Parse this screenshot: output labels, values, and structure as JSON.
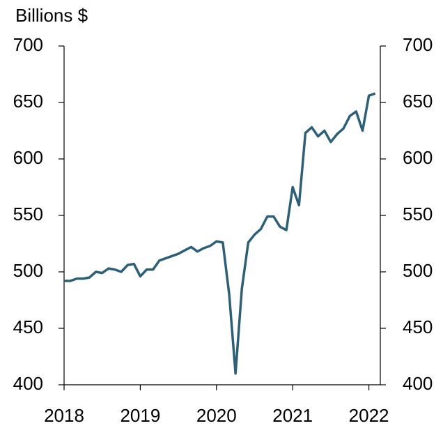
{
  "chart_data": {
    "type": "line",
    "y_label": "Billions $",
    "x": [
      2018.0,
      2018.083,
      2018.167,
      2018.25,
      2018.333,
      2018.417,
      2018.5,
      2018.583,
      2018.667,
      2018.75,
      2018.833,
      2018.917,
      2019.0,
      2019.083,
      2019.167,
      2019.25,
      2019.333,
      2019.417,
      2019.5,
      2019.583,
      2019.667,
      2019.75,
      2019.833,
      2019.917,
      2020.0,
      2020.083,
      2020.167,
      2020.25,
      2020.333,
      2020.417,
      2020.5,
      2020.583,
      2020.667,
      2020.75,
      2020.833,
      2020.917,
      2021.0,
      2021.083,
      2021.167,
      2021.25,
      2021.333,
      2021.417,
      2021.5,
      2021.583,
      2021.667,
      2021.75,
      2021.833,
      2021.917,
      2022.0,
      2022.083
    ],
    "series": [
      {
        "color": "#2c6079",
        "values": [
          492,
          492,
          494,
          494,
          495,
          500,
          499,
          503,
          502,
          500,
          506,
          507,
          496,
          502,
          502,
          510,
          512,
          514,
          516,
          519,
          522,
          518,
          521,
          523,
          527,
          526,
          480,
          410,
          485,
          526,
          533,
          538,
          549,
          549,
          540,
          537,
          575,
          559,
          623,
          628,
          620,
          625,
          615,
          622,
          627,
          638,
          642,
          625,
          656,
          658
        ]
      }
    ],
    "xlim": [
      2018,
      2022.15
    ],
    "xticks": [
      2018,
      2019,
      2020,
      2021,
      2022
    ],
    "ylim": [
      400,
      700
    ],
    "yticks": [
      400,
      450,
      500,
      550,
      600,
      650,
      700
    ],
    "y2lim": [
      400,
      700
    ],
    "y2ticks": [
      400,
      450,
      500,
      550,
      600,
      650,
      700
    ]
  }
}
